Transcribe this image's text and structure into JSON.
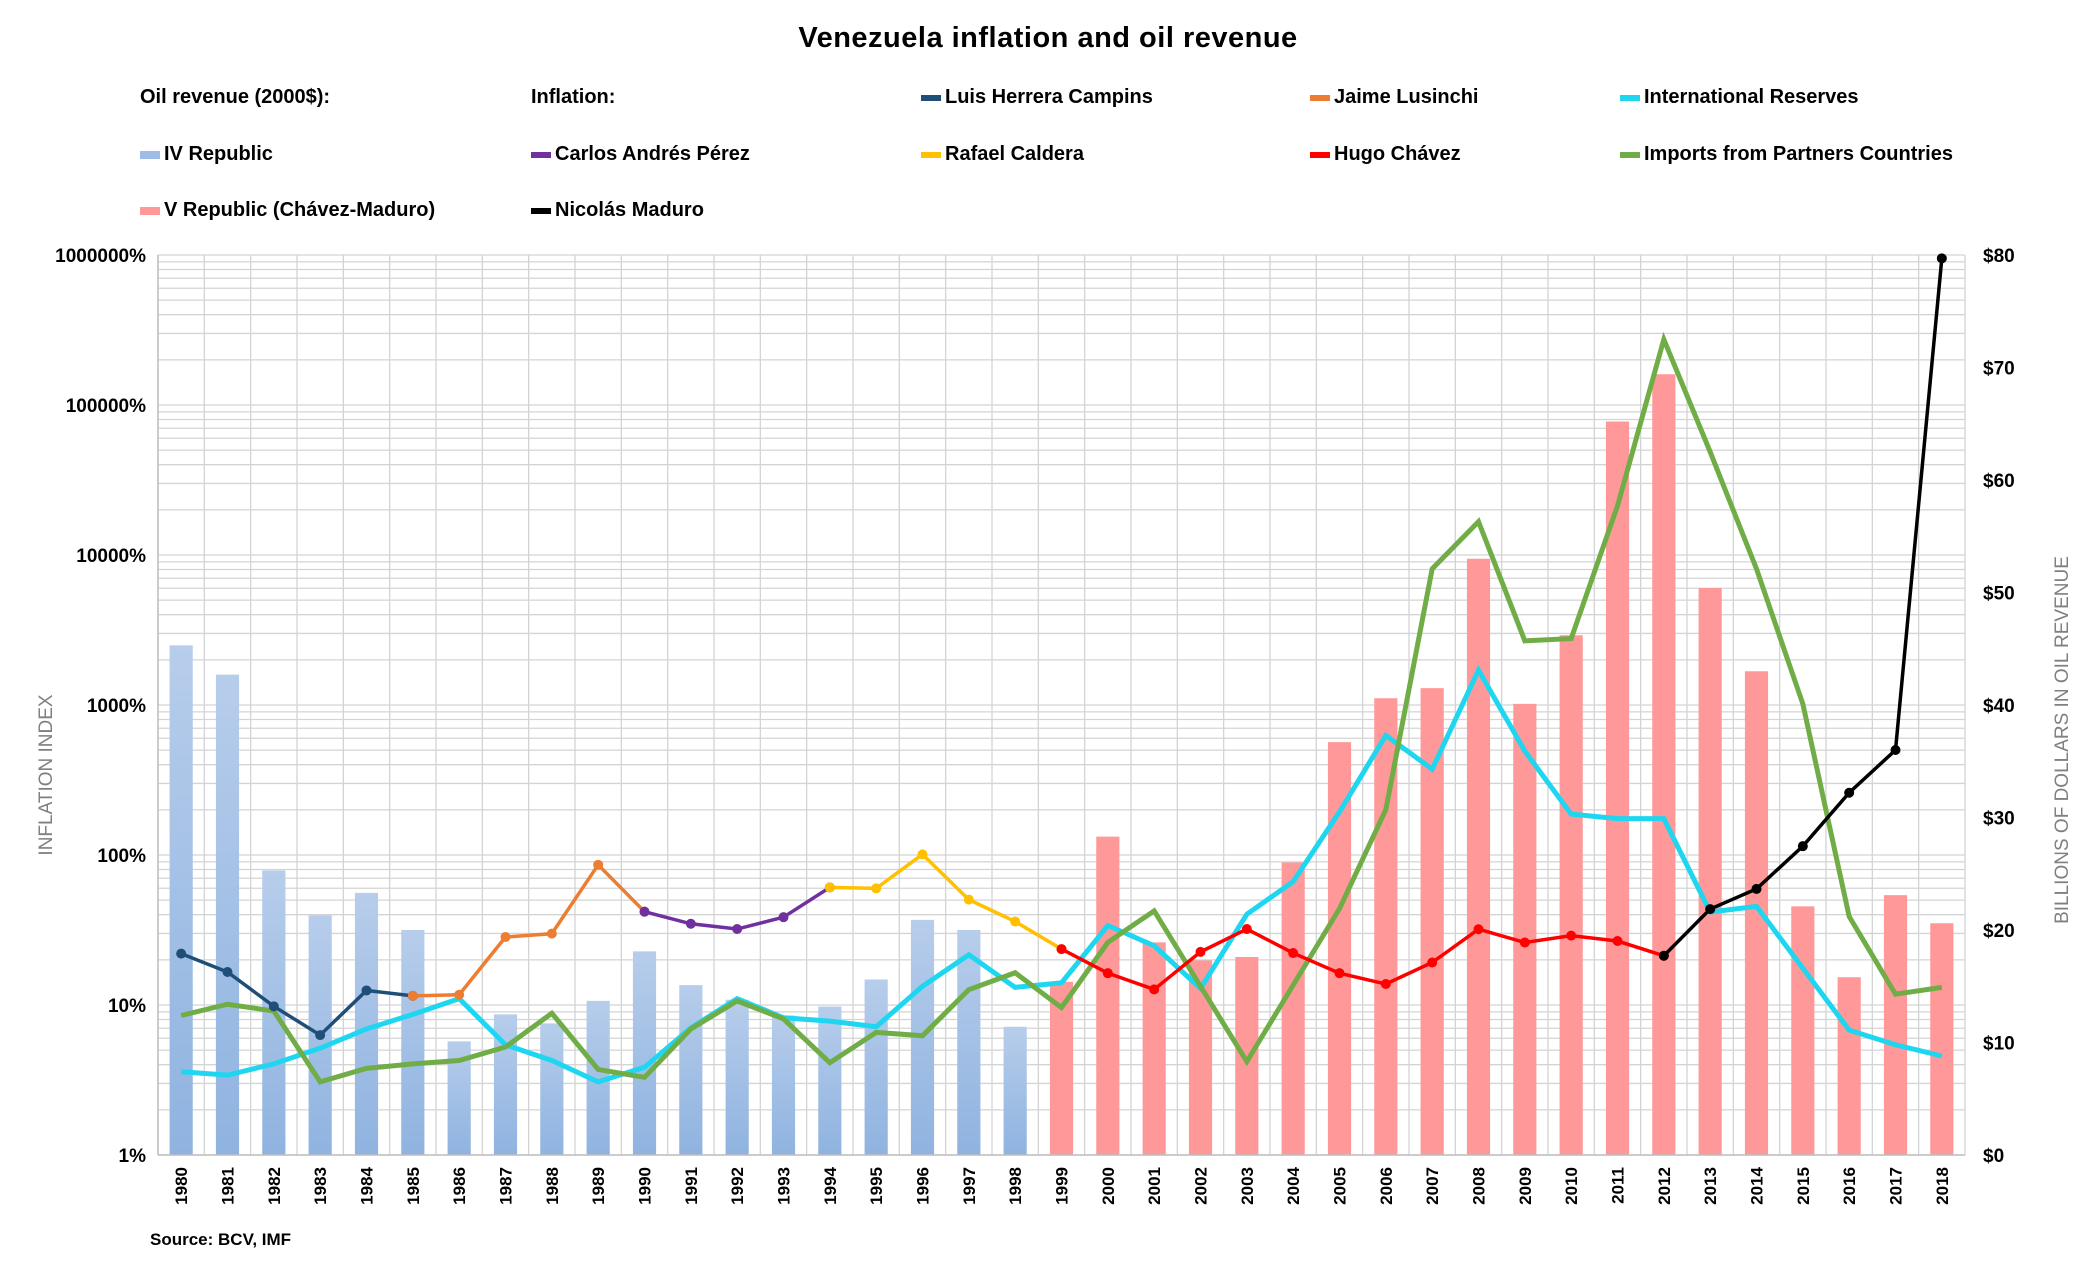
{
  "chart_data": {
    "type": "bar+line",
    "title": "Venezuela inflation and oil revenue",
    "ylabel_left": "INFLATION INDEX",
    "ylabel_right": "BILLIONS OF DOLLARS IN OIL REVENUE",
    "source": "Source: BCV,  IMF",
    "left_axis": {
      "scale": "log",
      "range": [
        1,
        1000000
      ],
      "ticks": [
        "1%",
        "10%",
        "100%",
        "1000%",
        "10000%",
        "100000%",
        "1000000%"
      ]
    },
    "right_axis": {
      "scale": "linear",
      "range": [
        0,
        80
      ],
      "ticks": [
        "$0",
        "$10",
        "$20",
        "$30",
        "$40",
        "$50",
        "$60",
        "$70",
        "$80"
      ]
    },
    "grid": true,
    "legend_placement": "top",
    "legend_headers": {
      "oil": "Oil revenue (2000$):",
      "inflation": "Inflation:"
    },
    "categories": [
      "1980",
      "1981",
      "1982",
      "1983",
      "1984",
      "1985",
      "1986",
      "1987",
      "1988",
      "1989",
      "1990",
      "1991",
      "1992",
      "1993",
      "1994",
      "1995",
      "1996",
      "1997",
      "1998",
      "1999",
      "2000",
      "2001",
      "2002",
      "2003",
      "2004",
      "2005",
      "2006",
      "2007",
      "2008",
      "2009",
      "2010",
      "2011",
      "2012",
      "2013",
      "2014",
      "2015",
      "2016",
      "2017",
      "2018"
    ],
    "bars": [
      {
        "name": "IV Republic",
        "color": "#9dbde6",
        "axis": "right",
        "years": [
          "1980",
          "1981",
          "1982",
          "1983",
          "1984",
          "1985",
          "1986",
          "1987",
          "1988",
          "1989",
          "1990",
          "1991",
          "1992",
          "1993",
          "1994",
          "1995",
          "1996",
          "1997",
          "1998"
        ],
        "values": [
          45.3,
          42.7,
          25.3,
          21.3,
          23.3,
          20.0,
          10.1,
          12.5,
          11.7,
          13.7,
          18.1,
          15.1,
          13.8,
          12.4,
          13.2,
          15.6,
          20.9,
          20.0,
          11.4
        ]
      },
      {
        "name": "V Republic (Chávez-Maduro)",
        "color": "#ff9999",
        "axis": "right",
        "years": [
          "1999",
          "2000",
          "2001",
          "2002",
          "2003",
          "2004",
          "2005",
          "2006",
          "2007",
          "2008",
          "2009",
          "2010",
          "2011",
          "2012",
          "2013",
          "2014",
          "2015",
          "2016",
          "2017",
          "2018"
        ],
        "values": [
          15.4,
          28.3,
          18.9,
          17.3,
          17.6,
          26.0,
          36.7,
          40.6,
          41.5,
          53.0,
          40.1,
          46.2,
          65.2,
          69.4,
          50.4,
          43.0,
          22.1,
          15.8,
          23.1,
          20.6
        ]
      }
    ],
    "inflation_series": [
      {
        "name": "Luis Herrera Campins",
        "color": "#1f4e79",
        "years": [
          "1980",
          "1981",
          "1982",
          "1983",
          "1984",
          "1985"
        ],
        "values": [
          22,
          16.6,
          9.8,
          6.3,
          12.5,
          11.5
        ]
      },
      {
        "name": "Jaime Lusinchi",
        "color": "#ed7d31",
        "years": [
          "1985",
          "1986",
          "1987",
          "1988",
          "1989",
          "1990"
        ],
        "values": [
          11.5,
          11.7,
          28.4,
          29.9,
          86,
          41.9
        ]
      },
      {
        "name": "Carlos Andrés Pérez",
        "color": "#7030a0",
        "years": [
          "1990",
          "1991",
          "1992",
          "1993",
          "1994"
        ],
        "values": [
          41.9,
          34.8,
          32.1,
          38.5,
          60.8
        ]
      },
      {
        "name": "Rafael Caldera",
        "color": "#ffc000",
        "years": [
          "1994",
          "1995",
          "1996",
          "1997",
          "1998",
          "1999"
        ],
        "values": [
          60.8,
          59.9,
          101,
          50.4,
          36,
          23.6
        ]
      },
      {
        "name": "Hugo Chávez",
        "color": "#ff0000",
        "years": [
          "1999",
          "2000",
          "2001",
          "2002",
          "2003",
          "2004",
          "2005",
          "2006",
          "2007",
          "2008",
          "2009",
          "2010",
          "2011",
          "2012"
        ],
        "values": [
          23.6,
          16.3,
          12.7,
          22.6,
          32.1,
          22.2,
          16.3,
          13.8,
          19.2,
          32,
          26.1,
          29,
          26.7,
          21.3
        ]
      },
      {
        "name": "Nicolás Maduro",
        "color": "#000000",
        "years": [
          "2012",
          "2013",
          "2014",
          "2015",
          "2016",
          "2017",
          "2018"
        ],
        "values": [
          21.3,
          43.6,
          59.4,
          114.5,
          260,
          501,
          950000
        ]
      }
    ],
    "other_series": [
      {
        "name": "International Reserves",
        "color": "#1ed6f0",
        "axis": "right",
        "values": [
          7.4,
          7.1,
          8.1,
          9.5,
          11.2,
          12.5,
          13.9,
          9.8,
          8.4,
          6.5,
          7.8,
          11.3,
          13.9,
          12.2,
          11.9,
          11.4,
          15.0,
          17.8,
          14.9,
          15.3,
          20.4,
          18.6,
          14.8,
          21.4,
          24.3,
          30.5,
          37.3,
          34.3,
          43.1,
          35.9,
          30.3,
          29.9,
          29.9,
          21.6,
          22.1,
          16.6,
          11.1,
          9.8,
          8.8
        ]
      },
      {
        "name": "Imports from Partners Countries",
        "color": "#70ad47",
        "axis": "right",
        "values": [
          12.4,
          13.4,
          12.8,
          6.5,
          7.7,
          8.1,
          8.4,
          9.6,
          12.6,
          7.6,
          6.9,
          11.2,
          13.7,
          12.1,
          8.2,
          10.9,
          10.6,
          14.7,
          16.2,
          13.1,
          18.9,
          21.7,
          15.0,
          8.3,
          15.1,
          21.9,
          30.7,
          52.1,
          56.3,
          45.7,
          45.9,
          57.7,
          72.5,
          62.5,
          52.1,
          40.1,
          21.2,
          14.3,
          14.9
        ]
      }
    ]
  }
}
